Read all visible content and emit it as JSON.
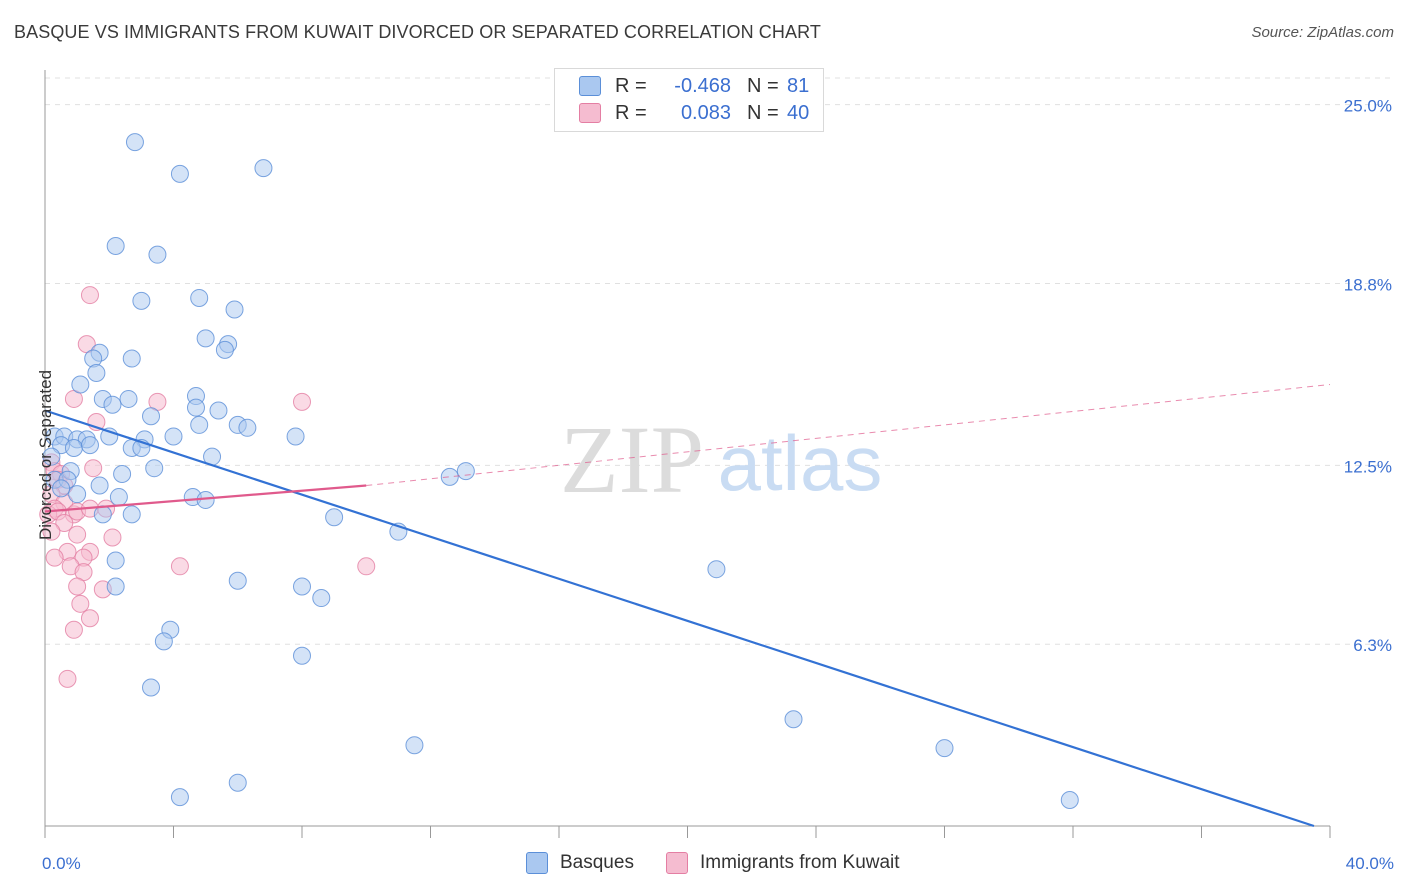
{
  "header": {
    "title": "BASQUE VS IMMIGRANTS FROM KUWAIT DIVORCED OR SEPARATED CORRELATION CHART",
    "source": "Source: ZipAtlas.com"
  },
  "watermark": {
    "zip": "ZIP",
    "atlas": "atlas"
  },
  "legend": {
    "rows": [
      {
        "r_label": "R =",
        "r_value": "-0.468",
        "n_label": "N =",
        "n_value": "81"
      },
      {
        "r_label": "R =",
        "r_value": "0.083",
        "n_label": "N =",
        "n_value": "40"
      }
    ]
  },
  "chart_data": {
    "type": "scatter",
    "title": "BASQUE VS IMMIGRANTS FROM KUWAIT DIVORCED OR SEPARATED CORRELATION CHART",
    "xlabel": "",
    "ylabel": "Divorced or Separated",
    "xlim": [
      0,
      40
    ],
    "ylim": [
      0,
      26.2
    ],
    "x_tick_labels": [
      "0.0%",
      "40.0%"
    ],
    "y_ticks": [
      6.3,
      12.5,
      18.8,
      25.0
    ],
    "y_tick_labels": [
      "6.3%",
      "12.5%",
      "18.8%",
      "25.0%"
    ],
    "grid": true,
    "legend_position": "top-center",
    "colors": {
      "basques_fill": "#aac8f0",
      "basques_stroke": "#5b8fd8",
      "basques_line": "#3372d4",
      "kuwait_fill": "#f5bcd0",
      "kuwait_stroke": "#e47ea3",
      "kuwait_line": "#e05a8c",
      "tick_text": "#3b6fd0",
      "grid": "#e0e0e0"
    },
    "series": [
      {
        "name": "Basques",
        "r": -0.468,
        "n": 81,
        "trend": {
          "x": [
            0,
            39.5
          ],
          "y": [
            14.4,
            0
          ]
        },
        "points": [
          [
            2.8,
            23.7
          ],
          [
            4.2,
            22.6
          ],
          [
            6.8,
            22.8
          ],
          [
            2.2,
            20.1
          ],
          [
            3.5,
            19.8
          ],
          [
            3.0,
            18.2
          ],
          [
            4.8,
            18.3
          ],
          [
            5.9,
            17.9
          ],
          [
            5.0,
            16.9
          ],
          [
            5.7,
            16.7
          ],
          [
            5.6,
            16.5
          ],
          [
            1.7,
            16.4
          ],
          [
            1.5,
            16.2
          ],
          [
            2.7,
            16.2
          ],
          [
            1.6,
            15.7
          ],
          [
            1.1,
            15.3
          ],
          [
            1.8,
            14.8
          ],
          [
            2.6,
            14.8
          ],
          [
            4.7,
            14.9
          ],
          [
            2.1,
            14.6
          ],
          [
            4.7,
            14.5
          ],
          [
            5.4,
            14.4
          ],
          [
            3.3,
            14.2
          ],
          [
            4.8,
            13.9
          ],
          [
            6.0,
            13.9
          ],
          [
            6.3,
            13.8
          ],
          [
            2.0,
            13.5
          ],
          [
            3.1,
            13.4
          ],
          [
            4.0,
            13.5
          ],
          [
            7.8,
            13.5
          ],
          [
            0.3,
            13.5
          ],
          [
            0.6,
            13.5
          ],
          [
            1.0,
            13.4
          ],
          [
            1.3,
            13.4
          ],
          [
            0.5,
            13.2
          ],
          [
            0.9,
            13.1
          ],
          [
            1.4,
            13.2
          ],
          [
            2.7,
            13.1
          ],
          [
            3.0,
            13.1
          ],
          [
            0.2,
            12.8
          ],
          [
            5.2,
            12.8
          ],
          [
            3.4,
            12.4
          ],
          [
            0.8,
            12.3
          ],
          [
            2.4,
            12.2
          ],
          [
            0.3,
            12.0
          ],
          [
            0.7,
            12.0
          ],
          [
            12.6,
            12.1
          ],
          [
            13.1,
            12.3
          ],
          [
            0.5,
            11.7
          ],
          [
            1.7,
            11.8
          ],
          [
            1.0,
            11.5
          ],
          [
            2.3,
            11.4
          ],
          [
            4.6,
            11.4
          ],
          [
            5.0,
            11.3
          ],
          [
            1.8,
            10.8
          ],
          [
            2.7,
            10.8
          ],
          [
            9.0,
            10.7
          ],
          [
            11.0,
            10.2
          ],
          [
            2.2,
            9.2
          ],
          [
            20.9,
            8.9
          ],
          [
            6.0,
            8.5
          ],
          [
            8.0,
            8.3
          ],
          [
            2.2,
            8.3
          ],
          [
            8.6,
            7.9
          ],
          [
            3.9,
            6.8
          ],
          [
            3.7,
            6.4
          ],
          [
            8.0,
            5.9
          ],
          [
            3.3,
            4.8
          ],
          [
            23.3,
            3.7
          ],
          [
            11.5,
            2.8
          ],
          [
            28.0,
            2.7
          ],
          [
            6.0,
            1.5
          ],
          [
            4.2,
            1.0
          ],
          [
            31.9,
            0.9
          ]
        ]
      },
      {
        "name": "Immigrants from Kuwait",
        "r": 0.083,
        "n": 40,
        "trend": {
          "x": [
            0,
            10
          ],
          "y": [
            10.9,
            11.8
          ],
          "extended": {
            "x": [
              10,
              40
            ],
            "y": [
              11.8,
              15.3
            ]
          }
        },
        "points": [
          [
            1.4,
            18.4
          ],
          [
            1.3,
            16.7
          ],
          [
            0.9,
            14.8
          ],
          [
            3.5,
            14.7
          ],
          [
            8.0,
            14.7
          ],
          [
            1.6,
            14.0
          ],
          [
            0.2,
            12.6
          ],
          [
            0.3,
            12.3
          ],
          [
            0.5,
            12.2
          ],
          [
            1.5,
            12.4
          ],
          [
            0.4,
            12.0
          ],
          [
            0.6,
            11.8
          ],
          [
            0.2,
            11.5
          ],
          [
            0.6,
            11.2
          ],
          [
            0.3,
            11.0
          ],
          [
            0.1,
            10.8
          ],
          [
            0.4,
            10.9
          ],
          [
            0.9,
            10.8
          ],
          [
            1.0,
            10.9
          ],
          [
            1.4,
            11.0
          ],
          [
            1.9,
            11.0
          ],
          [
            0.6,
            10.5
          ],
          [
            0.2,
            10.2
          ],
          [
            1.0,
            10.1
          ],
          [
            2.1,
            10.0
          ],
          [
            0.7,
            9.5
          ],
          [
            1.4,
            9.5
          ],
          [
            0.3,
            9.3
          ],
          [
            1.2,
            9.3
          ],
          [
            0.8,
            9.0
          ],
          [
            1.2,
            8.8
          ],
          [
            4.2,
            9.0
          ],
          [
            10.0,
            9.0
          ],
          [
            1.0,
            8.3
          ],
          [
            1.8,
            8.2
          ],
          [
            1.1,
            7.7
          ],
          [
            1.4,
            7.2
          ],
          [
            0.9,
            6.8
          ],
          [
            0.7,
            5.1
          ]
        ]
      }
    ]
  },
  "bottom_legend": {
    "items": [
      {
        "label": "Basques"
      },
      {
        "label": "Immigrants from Kuwait"
      }
    ]
  }
}
